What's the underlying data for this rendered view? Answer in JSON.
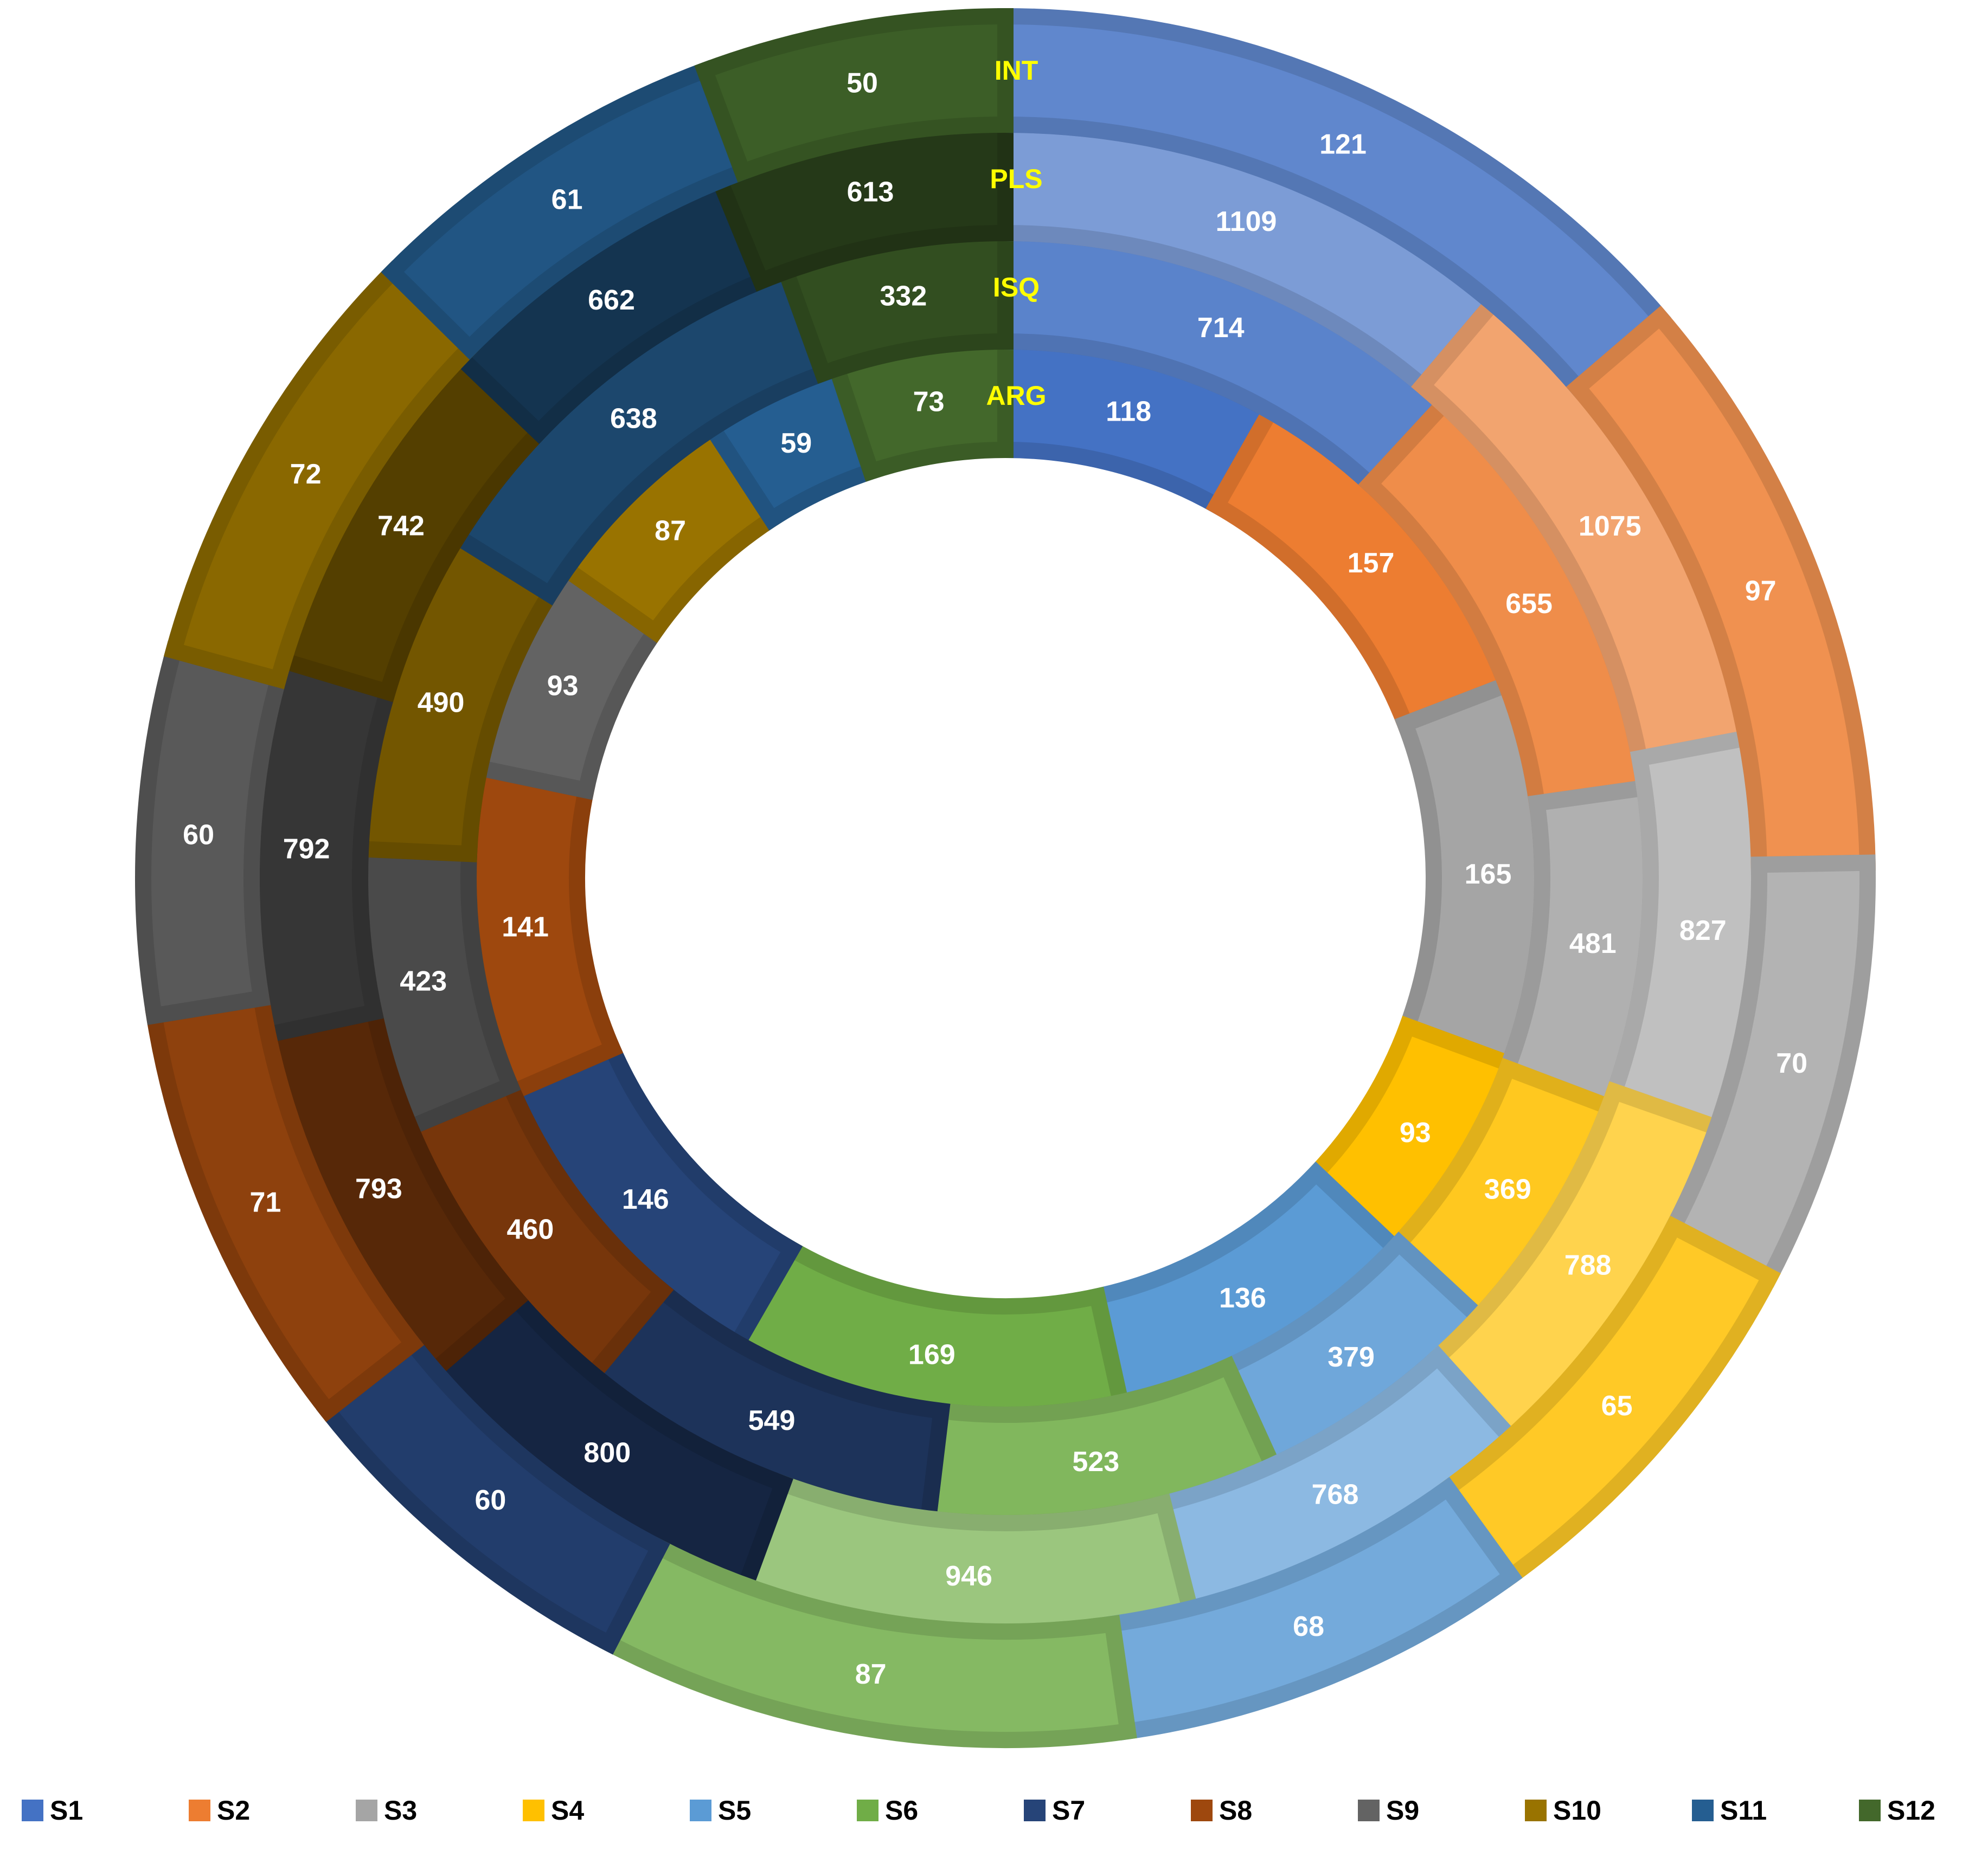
{
  "chart_data": {
    "type": "multi-level doughnut",
    "title": "",
    "rings": [
      {
        "name": "ARG",
        "values": [
          118,
          157,
          165,
          93,
          136,
          169,
          146,
          141,
          93,
          87,
          59,
          73
        ]
      },
      {
        "name": "ISQ",
        "values": [
          714,
          655,
          481,
          369,
          379,
          523,
          549,
          460,
          423,
          490,
          638,
          332
        ]
      },
      {
        "name": "PLS",
        "values": [
          1109,
          1075,
          827,
          788,
          768,
          946,
          800,
          793,
          792,
          742,
          662,
          613
        ]
      },
      {
        "name": "INT",
        "values": [
          121,
          97,
          70,
          65,
          68,
          87,
          60,
          71,
          60,
          72,
          61,
          50
        ]
      }
    ],
    "series": [
      {
        "name": "S1",
        "color": "#4472C4"
      },
      {
        "name": "S2",
        "color": "#ED7D31"
      },
      {
        "name": "S3",
        "color": "#A5A5A5"
      },
      {
        "name": "S4",
        "color": "#FFC000"
      },
      {
        "name": "S5",
        "color": "#5B9BD5"
      },
      {
        "name": "S6",
        "color": "#70AD47"
      },
      {
        "name": "S7",
        "color": "#264478"
      },
      {
        "name": "S8",
        "color": "#9E480E"
      },
      {
        "name": "S9",
        "color": "#636363"
      },
      {
        "name": "S10",
        "color": "#997300"
      },
      {
        "name": "S11",
        "color": "#255E91"
      },
      {
        "name": "S12",
        "color": "#43682B"
      }
    ],
    "ring_label_color": "#FFFF00",
    "legend_position": "bottom"
  }
}
